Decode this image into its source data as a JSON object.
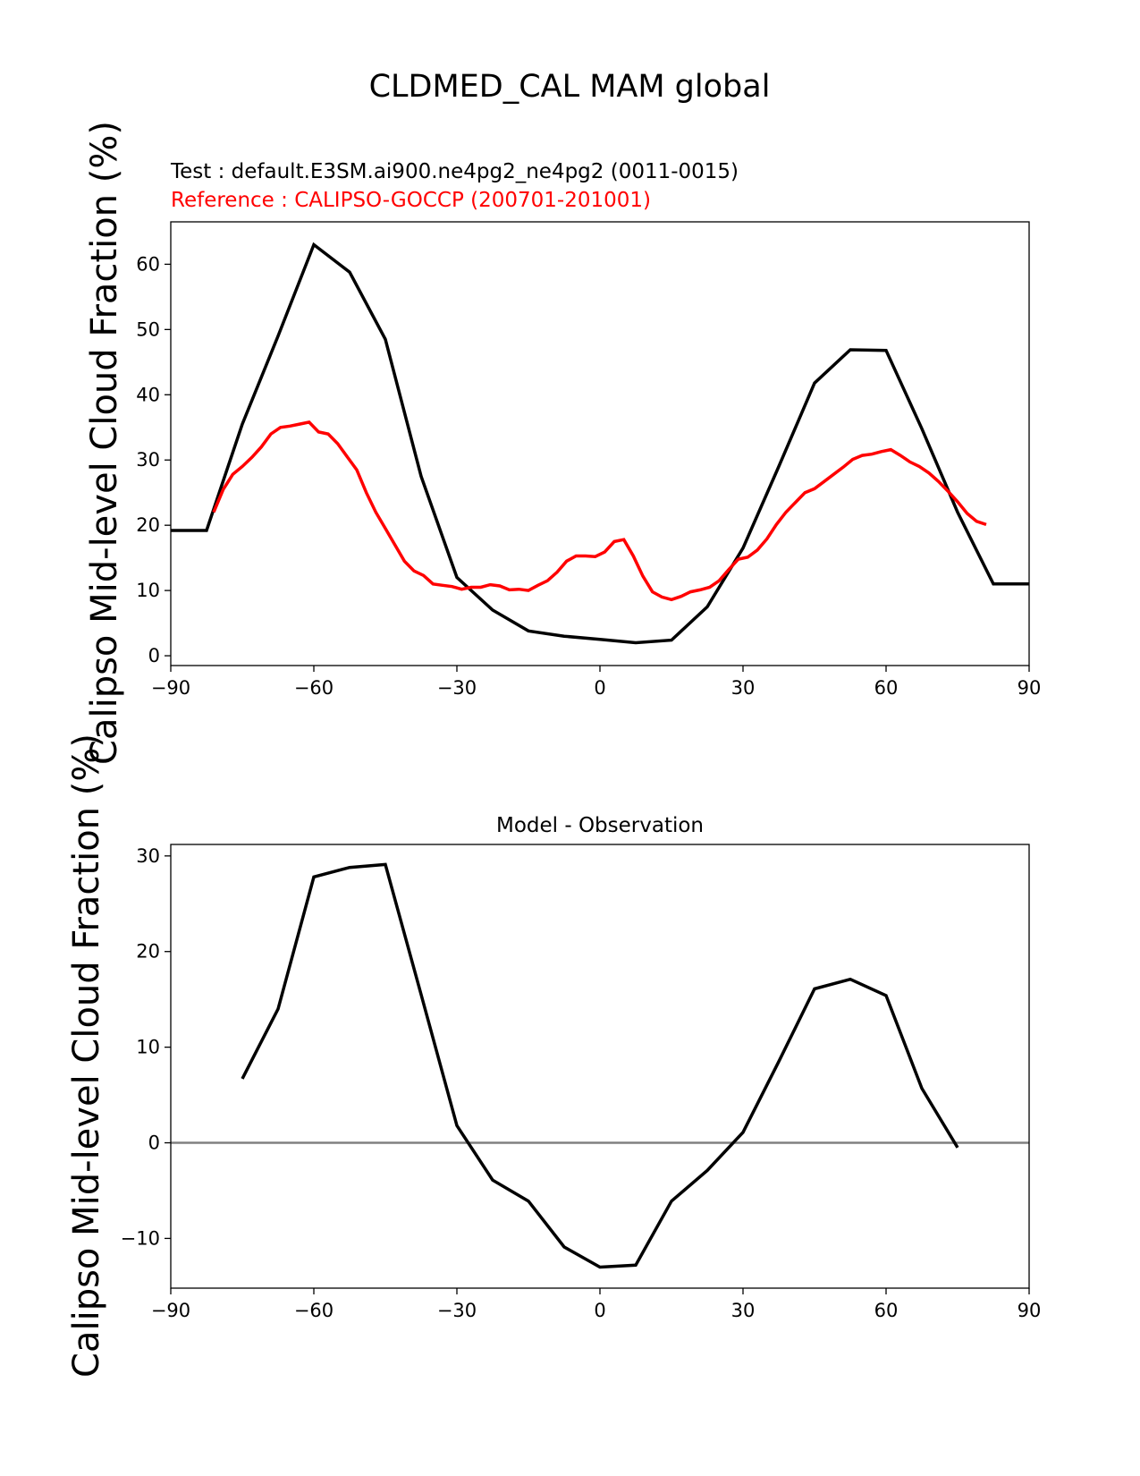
{
  "figure": {
    "title": "CLDMED_CAL MAM global"
  },
  "chart_data": [
    {
      "type": "line",
      "test_label": "Test : default.E3SM.ai900.ne4pg2_ne4pg2 (0011-0015)",
      "reference_label": "Reference : CALIPSO-GOCCP (200701-201001)",
      "ylabel": "Calipso Mid-level Cloud Fraction (%)",
      "xlim": [
        -90,
        90
      ],
      "ylim": [
        -1.5,
        66.5
      ],
      "xticks": [
        -90,
        -60,
        -30,
        0,
        30,
        60,
        90
      ],
      "xtick_labels": [
        "−90",
        "−60",
        "−30",
        "0",
        "30",
        "60",
        "90"
      ],
      "yticks": [
        0,
        10,
        20,
        30,
        40,
        50,
        60
      ],
      "ytick_labels": [
        "0",
        "10",
        "20",
        "30",
        "40",
        "50",
        "60"
      ],
      "series": [
        {
          "color": "#000000",
          "x": [
            -90,
            -82.5,
            -75,
            -67.5,
            -60,
            -52.5,
            -45,
            -37.5,
            -30,
            -22.5,
            -15,
            -7.5,
            0,
            7.5,
            15,
            22.5,
            30,
            37.5,
            45,
            52.5,
            60,
            67.5,
            75,
            82.5,
            90
          ],
          "y": [
            19.2,
            19.2,
            35.5,
            49,
            63,
            58.8,
            48.5,
            27.5,
            12,
            7,
            3.8,
            3,
            2.5,
            2,
            2.4,
            7.5,
            16.5,
            29,
            41.8,
            46.9,
            46.8,
            34.8,
            22,
            11,
            11
          ]
        },
        {
          "color": "#ff0000",
          "x": [
            -81,
            -79,
            -77,
            -75,
            -73,
            -71,
            -69,
            -67,
            -65,
            -63,
            -61,
            -59,
            -57,
            -55,
            -53,
            -51,
            -49,
            -47,
            -45,
            -43,
            -41,
            -39,
            -37,
            -35,
            -33,
            -31,
            -29,
            -27,
            -25,
            -23,
            -21,
            -19,
            -17,
            -15,
            -13,
            -11,
            -9,
            -7,
            -5,
            -3,
            -1,
            1,
            3,
            5,
            7,
            9,
            11,
            13,
            15,
            17,
            19,
            21,
            23,
            25,
            27,
            29,
            31,
            33,
            35,
            37,
            39,
            41,
            43,
            45,
            47,
            49,
            51,
            53,
            55,
            57,
            59,
            61,
            63,
            65,
            67,
            69,
            71,
            73,
            75,
            77,
            79,
            81
          ],
          "y": [
            22,
            25.5,
            27.8,
            29,
            30.4,
            32,
            34,
            35,
            35.2,
            35.5,
            35.8,
            34.3,
            34,
            32.5,
            30.5,
            28.5,
            25,
            22,
            19.5,
            17,
            14.5,
            13,
            12.3,
            11,
            10.8,
            10.6,
            10.2,
            10.5,
            10.5,
            10.9,
            10.7,
            10.1,
            10.2,
            10,
            10.8,
            11.5,
            12.8,
            14.5,
            15.3,
            15.3,
            15.2,
            15.9,
            17.5,
            17.8,
            15.3,
            12.2,
            9.8,
            9,
            8.6,
            9.1,
            9.8,
            10.1,
            10.5,
            11.5,
            13.2,
            14.8,
            15.1,
            16.2,
            17.9,
            20.1,
            22,
            23.5,
            25,
            25.6,
            26.7,
            27.8,
            28.9,
            30.1,
            30.7,
            30.9,
            31.3,
            31.6,
            30.7,
            29.7,
            29,
            28,
            26.7,
            25.2,
            23.6,
            21.8,
            20.6,
            20.1
          ]
        }
      ]
    },
    {
      "type": "line",
      "title": "Model - Observation",
      "ylabel": "Calipso Mid-level Cloud Fraction (%)",
      "xlim": [
        -90,
        90
      ],
      "ylim": [
        -15.2,
        31.2
      ],
      "xticks": [
        -90,
        -60,
        -30,
        0,
        30,
        60,
        90
      ],
      "xtick_labels": [
        "−90",
        "−60",
        "−30",
        "0",
        "30",
        "60",
        "90"
      ],
      "yticks": [
        -10,
        0,
        10,
        20,
        30
      ],
      "ytick_labels": [
        "−10",
        "0",
        "10",
        "20",
        "30"
      ],
      "zero_line": {
        "y": 0,
        "color": "#808080"
      },
      "series": [
        {
          "color": "#000000",
          "x": [
            -75,
            -67.5,
            -60,
            -52.5,
            -45,
            -37.5,
            -30,
            -22.5,
            -15,
            -7.5,
            0,
            7.5,
            15,
            22.5,
            30,
            37.5,
            45,
            52.5,
            60,
            67.5,
            75
          ],
          "y": [
            6.7,
            14,
            27.8,
            28.8,
            29.1,
            15.5,
            1.8,
            -3.9,
            -6.1,
            -10.9,
            -13,
            -12.8,
            -6.1,
            -2.9,
            1.1,
            8.5,
            16.1,
            17.1,
            15.4,
            5.7,
            -0.5
          ]
        }
      ]
    }
  ]
}
